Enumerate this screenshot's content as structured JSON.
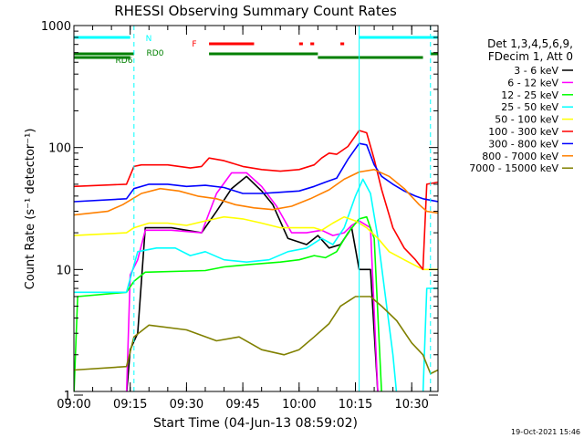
{
  "chart_data": {
    "type": "line",
    "title": "RHESSI Observing Summary Count Rates",
    "xlabel": "Start Time (04-Jun-13 08:59:02)",
    "ylabel": "Count Rate (s⁻¹ detector⁻¹)",
    "x_scale": "time",
    "y_scale": "log",
    "x_range": [
      "09:00",
      "10:37"
    ],
    "ylim": [
      1,
      1000
    ],
    "x_ticks": [
      "09:00",
      "09:15",
      "09:30",
      "09:45",
      "10:00",
      "10:15",
      "10:30"
    ],
    "y_ticks": [
      "1",
      "10",
      "100",
      "1000"
    ],
    "legend_header": [
      "Det 1,3,4,5,6,9,",
      "FDecim 1, Att 0"
    ],
    "legend_position": "right",
    "footer_date": "19-Oct-2021 15:46",
    "series": [
      {
        "name": "3 - 6 keV",
        "color": "#000000",
        "points": [
          [
            "09:00",
            0
          ],
          [
            "09:14",
            0
          ],
          [
            "09:15",
            2.2
          ],
          [
            "09:17",
            3.0
          ],
          [
            "09:19",
            22
          ],
          [
            "09:26",
            22
          ],
          [
            "09:34",
            20
          ],
          [
            "09:38",
            30
          ],
          [
            "09:42",
            46
          ],
          [
            "09:46",
            58
          ],
          [
            "09:50",
            44
          ],
          [
            "09:53",
            34
          ],
          [
            "09:57",
            18
          ],
          [
            "10:02",
            16
          ],
          [
            "10:05",
            19
          ],
          [
            "10:08",
            15
          ],
          [
            "10:11",
            16
          ],
          [
            "10:14",
            22
          ],
          [
            "10:16",
            10
          ],
          [
            "10:19",
            10
          ],
          [
            "10:21",
            0
          ],
          [
            "10:37",
            0
          ]
        ]
      },
      {
        "name": "6 - 12 keV",
        "color": "#ff00ff",
        "points": [
          [
            "09:00",
            0
          ],
          [
            "09:14",
            0
          ],
          [
            "09:15",
            9
          ],
          [
            "09:17",
            12
          ],
          [
            "09:19",
            21
          ],
          [
            "09:26",
            21
          ],
          [
            "09:34",
            20
          ],
          [
            "09:38",
            42
          ],
          [
            "09:42",
            62
          ],
          [
            "09:46",
            62
          ],
          [
            "09:50",
            48
          ],
          [
            "09:54",
            33
          ],
          [
            "09:58",
            20
          ],
          [
            "10:02",
            20
          ],
          [
            "10:06",
            21
          ],
          [
            "10:09",
            19
          ],
          [
            "10:12",
            20
          ],
          [
            "10:14",
            23
          ],
          [
            "10:16",
            25
          ],
          [
            "10:19",
            22
          ],
          [
            "10:21",
            0
          ],
          [
            "10:37",
            0
          ]
        ]
      },
      {
        "name": "12 - 25 keV",
        "color": "#00ff00",
        "points": [
          [
            "09:00",
            0
          ],
          [
            "09:01",
            6
          ],
          [
            "09:14",
            6.5
          ],
          [
            "09:16",
            8
          ],
          [
            "09:19",
            9.5
          ],
          [
            "09:35",
            9.8
          ],
          [
            "09:40",
            10.5
          ],
          [
            "09:47",
            11
          ],
          [
            "09:55",
            11.5
          ],
          [
            "10:00",
            12
          ],
          [
            "10:04",
            13
          ],
          [
            "10:07",
            12.5
          ],
          [
            "10:10",
            14
          ],
          [
            "10:13",
            20
          ],
          [
            "10:16",
            26
          ],
          [
            "10:18",
            27
          ],
          [
            "10:20",
            18
          ],
          [
            "10:22",
            0
          ],
          [
            "10:37",
            0
          ]
        ]
      },
      {
        "name": "25 - 50 keV",
        "color": "#00ffff",
        "points": [
          [
            "09:00",
            6.5
          ],
          [
            "09:14",
            6.5
          ],
          [
            "09:17",
            14
          ],
          [
            "09:22",
            15
          ],
          [
            "09:27",
            15
          ],
          [
            "09:31",
            13
          ],
          [
            "09:35",
            14
          ],
          [
            "09:40",
            12
          ],
          [
            "09:46",
            11.5
          ],
          [
            "09:52",
            12
          ],
          [
            "09:57",
            14
          ],
          [
            "10:02",
            15
          ],
          [
            "10:06",
            18
          ],
          [
            "10:09",
            16
          ],
          [
            "10:12",
            22
          ],
          [
            "10:15",
            40
          ],
          [
            "10:17",
            55
          ],
          [
            "10:19",
            42
          ],
          [
            "10:21",
            18
          ],
          [
            "10:23",
            6
          ],
          [
            "10:25",
            2
          ],
          [
            "10:26",
            0
          ],
          [
            "10:33",
            0
          ],
          [
            "10:34",
            7
          ],
          [
            "10:37",
            7
          ]
        ]
      },
      {
        "name": "50 - 100 keV",
        "color": "#ffff00",
        "points": [
          [
            "09:00",
            19
          ],
          [
            "09:14",
            20
          ],
          [
            "09:16",
            22
          ],
          [
            "09:20",
            24
          ],
          [
            "09:25",
            24
          ],
          [
            "09:30",
            23
          ],
          [
            "09:35",
            25
          ],
          [
            "09:40",
            27
          ],
          [
            "09:45",
            26
          ],
          [
            "09:50",
            24
          ],
          [
            "09:55",
            22
          ],
          [
            "10:00",
            22
          ],
          [
            "10:04",
            22
          ],
          [
            "10:06",
            21
          ],
          [
            "10:09",
            24
          ],
          [
            "10:12",
            27
          ],
          [
            "10:15",
            25
          ],
          [
            "10:18",
            22
          ],
          [
            "10:21",
            18
          ],
          [
            "10:24",
            14
          ],
          [
            "10:28",
            12
          ],
          [
            "10:33",
            10
          ],
          [
            "10:37",
            10
          ]
        ]
      },
      {
        "name": "100 - 300 keV",
        "color": "#ff0000",
        "points": [
          [
            "09:00",
            48
          ],
          [
            "09:14",
            50
          ],
          [
            "09:16",
            70
          ],
          [
            "09:18",
            72
          ],
          [
            "09:25",
            72
          ],
          [
            "09:31",
            68
          ],
          [
            "09:34",
            70
          ],
          [
            "09:36",
            82
          ],
          [
            "09:40",
            78
          ],
          [
            "09:45",
            70
          ],
          [
            "09:50",
            66
          ],
          [
            "09:55",
            64
          ],
          [
            "10:00",
            66
          ],
          [
            "10:04",
            72
          ],
          [
            "10:06",
            82
          ],
          [
            "10:08",
            90
          ],
          [
            "10:10",
            88
          ],
          [
            "10:13",
            102
          ],
          [
            "10:16",
            138
          ],
          [
            "10:18",
            132
          ],
          [
            "10:20",
            80
          ],
          [
            "10:22",
            45
          ],
          [
            "10:25",
            22
          ],
          [
            "10:28",
            15
          ],
          [
            "10:31",
            12
          ],
          [
            "10:33",
            10
          ],
          [
            "10:34",
            50
          ],
          [
            "10:37",
            52
          ]
        ]
      },
      {
        "name": "300 - 800 keV",
        "color": "#0000ff",
        "points": [
          [
            "09:00",
            36
          ],
          [
            "09:14",
            38
          ],
          [
            "09:16",
            46
          ],
          [
            "09:20",
            50
          ],
          [
            "09:25",
            50
          ],
          [
            "09:30",
            48
          ],
          [
            "09:35",
            49
          ],
          [
            "09:40",
            47
          ],
          [
            "09:45",
            42
          ],
          [
            "09:50",
            42
          ],
          [
            "09:55",
            43
          ],
          [
            "10:00",
            44
          ],
          [
            "10:04",
            48
          ],
          [
            "10:07",
            52
          ],
          [
            "10:10",
            56
          ],
          [
            "10:13",
            80
          ],
          [
            "10:16",
            108
          ],
          [
            "10:18",
            105
          ],
          [
            "10:20",
            72
          ],
          [
            "10:22",
            58
          ],
          [
            "10:25",
            50
          ],
          [
            "10:28",
            44
          ],
          [
            "10:31",
            40
          ],
          [
            "10:33",
            38
          ],
          [
            "10:37",
            36
          ]
        ]
      },
      {
        "name": "800 - 7000 keV",
        "color": "#ff8000",
        "points": [
          [
            "09:00",
            28
          ],
          [
            "09:09",
            30
          ],
          [
            "09:13",
            34
          ],
          [
            "09:18",
            42
          ],
          [
            "09:23",
            46
          ],
          [
            "09:28",
            44
          ],
          [
            "09:33",
            40
          ],
          [
            "09:38",
            38
          ],
          [
            "09:43",
            34
          ],
          [
            "09:48",
            32
          ],
          [
            "09:53",
            31
          ],
          [
            "09:58",
            33
          ],
          [
            "10:03",
            38
          ],
          [
            "10:08",
            45
          ],
          [
            "10:12",
            55
          ],
          [
            "10:16",
            63
          ],
          [
            "10:20",
            66
          ],
          [
            "10:24",
            58
          ],
          [
            "10:28",
            46
          ],
          [
            "10:32",
            34
          ],
          [
            "10:34",
            30
          ],
          [
            "10:37",
            29
          ]
        ]
      },
      {
        "name": "7000 - 15000 keV",
        "color": "#808000",
        "points": [
          [
            "09:00",
            1.5
          ],
          [
            "09:14",
            1.6
          ],
          [
            "09:16",
            2.8
          ],
          [
            "09:20",
            3.5
          ],
          [
            "09:30",
            3.2
          ],
          [
            "09:38",
            2.6
          ],
          [
            "09:44",
            2.8
          ],
          [
            "09:50",
            2.2
          ],
          [
            "09:56",
            2.0
          ],
          [
            "10:00",
            2.2
          ],
          [
            "10:04",
            2.8
          ],
          [
            "10:08",
            3.6
          ],
          [
            "10:11",
            5.0
          ],
          [
            "10:15",
            6.0
          ],
          [
            "10:19",
            6.0
          ],
          [
            "10:22",
            5.0
          ],
          [
            "10:26",
            3.8
          ],
          [
            "10:30",
            2.5
          ],
          [
            "10:33",
            2.0
          ],
          [
            "10:35",
            1.4
          ],
          [
            "10:37",
            1.5
          ]
        ]
      }
    ],
    "state_bars": [
      {
        "label": "N",
        "color": "#00ffff",
        "intervals": [
          [
            "09:00",
            "09:15"
          ],
          [
            "10:16",
            "10:37"
          ]
        ]
      },
      {
        "label": "F",
        "color": "#ff0000",
        "intervals": [
          [
            "09:36",
            "09:48"
          ],
          [
            "10:00",
            "10:01"
          ],
          [
            "10:03",
            "10:04"
          ],
          [
            "10:11",
            "10:12"
          ]
        ]
      },
      {
        "label": "RD0",
        "color": "#008000",
        "intervals": [
          [
            "09:00",
            "09:16"
          ],
          [
            "09:36",
            "10:05"
          ],
          [
            "10:35",
            "10:37"
          ]
        ]
      },
      {
        "label": "RD6",
        "color": "#008000",
        "intervals": [
          [
            "09:00",
            "09:15"
          ],
          [
            "10:05",
            "10:33"
          ]
        ]
      }
    ],
    "markers": [
      {
        "time": "09:16",
        "color": "#00ffff",
        "style": "dashed"
      },
      {
        "time": "10:16",
        "color": "#00ffff",
        "style": "solid"
      },
      {
        "time": "10:35",
        "color": "#00ffff",
        "style": "dashed"
      }
    ]
  }
}
